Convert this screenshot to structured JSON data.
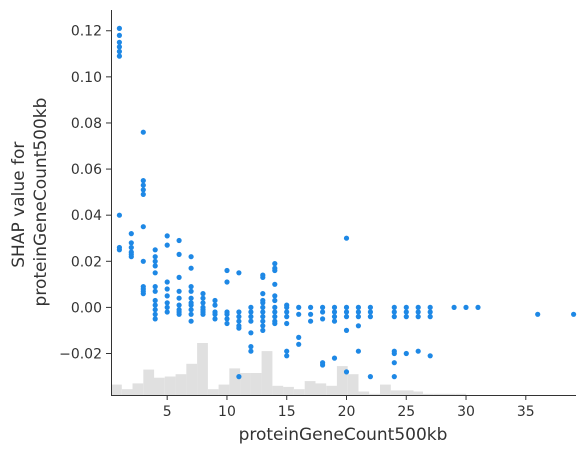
{
  "chart_data": {
    "type": "scatter",
    "xlabel": "proteinGeneCount500kb",
    "ylabel": "SHAP value for\nproteinGeneCount500kb",
    "xlim": [
      0.3,
      39.2
    ],
    "ylim": [
      -0.038,
      0.129
    ],
    "xticks": [
      5,
      10,
      15,
      20,
      25,
      30,
      35
    ],
    "yticks": [
      0.12,
      0.1,
      0.08,
      0.06,
      0.04,
      0.02,
      0.0,
      -0.02
    ],
    "ytick_labels": [
      "0.12",
      "0.10",
      "0.08",
      "0.06",
      "0.04",
      "0.02",
      "0.00",
      "−0.02"
    ],
    "colors": {
      "points": "#1e88e5",
      "histogram": "#e0e0e0",
      "axis": "#333333"
    },
    "grid": false,
    "legend": "none",
    "points": [
      [
        1,
        0.121
      ],
      [
        1,
        0.118
      ],
      [
        1,
        0.115
      ],
      [
        1,
        0.113
      ],
      [
        1,
        0.111
      ],
      [
        1,
        0.109
      ],
      [
        1,
        0.04
      ],
      [
        1,
        0.026
      ],
      [
        1,
        0.025
      ],
      [
        2,
        0.032
      ],
      [
        2,
        0.028
      ],
      [
        2,
        0.026
      ],
      [
        2,
        0.024
      ],
      [
        2,
        0.023
      ],
      [
        2,
        0.022
      ],
      [
        3,
        0.076
      ],
      [
        3,
        0.055
      ],
      [
        3,
        0.053
      ],
      [
        3,
        0.051
      ],
      [
        3,
        0.049
      ],
      [
        3,
        0.035
      ],
      [
        3,
        0.02
      ],
      [
        3,
        0.009
      ],
      [
        3,
        0.008
      ],
      [
        3,
        0.007
      ],
      [
        3,
        0.006
      ],
      [
        4,
        0.025
      ],
      [
        4,
        0.022
      ],
      [
        4,
        0.02
      ],
      [
        4,
        0.018
      ],
      [
        4,
        0.015
      ],
      [
        4,
        0.009
      ],
      [
        4,
        0.007
      ],
      [
        4,
        0.003
      ],
      [
        4,
        0.001
      ],
      [
        4,
        -0.001
      ],
      [
        4,
        -0.003
      ],
      [
        4,
        -0.005
      ],
      [
        5,
        0.031
      ],
      [
        5,
        0.027
      ],
      [
        5,
        0.011
      ],
      [
        5,
        0.008
      ],
      [
        5,
        0.005
      ],
      [
        5,
        0.002
      ],
      [
        5,
        0.0
      ],
      [
        5,
        -0.002
      ],
      [
        6,
        0.029
      ],
      [
        6,
        0.023
      ],
      [
        6,
        0.013
      ],
      [
        6,
        0.007
      ],
      [
        6,
        0.004
      ],
      [
        6,
        0.001
      ],
      [
        6,
        -0.001
      ],
      [
        6,
        -0.002
      ],
      [
        6,
        -0.003
      ],
      [
        7,
        0.022
      ],
      [
        7,
        0.017
      ],
      [
        7,
        0.009
      ],
      [
        7,
        0.007
      ],
      [
        7,
        0.004
      ],
      [
        7,
        0.002
      ],
      [
        7,
        0.001
      ],
      [
        7,
        -0.001
      ],
      [
        7,
        -0.003
      ],
      [
        7,
        -0.006
      ],
      [
        8,
        0.006
      ],
      [
        8,
        0.004
      ],
      [
        8,
        0.002
      ],
      [
        8,
        0.0
      ],
      [
        8,
        -0.001
      ],
      [
        8,
        -0.002
      ],
      [
        8,
        -0.003
      ],
      [
        9,
        0.003
      ],
      [
        9,
        0.001
      ],
      [
        9,
        -0.002
      ],
      [
        9,
        -0.003
      ],
      [
        9,
        -0.005
      ],
      [
        10,
        0.016
      ],
      [
        10,
        0.011
      ],
      [
        10,
        -0.002
      ],
      [
        10,
        -0.003
      ],
      [
        10,
        -0.005
      ],
      [
        10,
        -0.007
      ],
      [
        11,
        0.015
      ],
      [
        11,
        -0.002
      ],
      [
        11,
        -0.004
      ],
      [
        11,
        -0.006
      ],
      [
        11,
        -0.008
      ],
      [
        11,
        -0.009
      ],
      [
        11,
        -0.03
      ],
      [
        12,
        0.0
      ],
      [
        12,
        -0.002
      ],
      [
        12,
        -0.004
      ],
      [
        12,
        -0.006
      ],
      [
        12,
        -0.011
      ],
      [
        12,
        -0.017
      ],
      [
        12,
        -0.019
      ],
      [
        13,
        0.014
      ],
      [
        13,
        0.013
      ],
      [
        13,
        0.006
      ],
      [
        13,
        0.003
      ],
      [
        13,
        0.002
      ],
      [
        13,
        0.0
      ],
      [
        13,
        -0.002
      ],
      [
        13,
        -0.004
      ],
      [
        13,
        -0.006
      ],
      [
        13,
        -0.008
      ],
      [
        13,
        -0.01
      ],
      [
        14,
        0.019
      ],
      [
        14,
        0.017
      ],
      [
        14,
        0.016
      ],
      [
        14,
        0.01
      ],
      [
        14,
        0.005
      ],
      [
        14,
        0.003
      ],
      [
        14,
        0.0
      ],
      [
        14,
        -0.002
      ],
      [
        14,
        -0.004
      ],
      [
        14,
        -0.006
      ],
      [
        14,
        -0.007
      ],
      [
        15,
        0.001
      ],
      [
        15,
        0.0
      ],
      [
        15,
        -0.002
      ],
      [
        15,
        -0.004
      ],
      [
        15,
        -0.007
      ],
      [
        15,
        -0.019
      ],
      [
        15,
        -0.021
      ],
      [
        16,
        0.0
      ],
      [
        16,
        -0.003
      ],
      [
        16,
        -0.013
      ],
      [
        16,
        -0.016
      ],
      [
        17,
        0.0
      ],
      [
        17,
        -0.003
      ],
      [
        17,
        -0.006
      ],
      [
        18,
        0.0
      ],
      [
        18,
        -0.002
      ],
      [
        18,
        -0.005
      ],
      [
        18,
        -0.024
      ],
      [
        18,
        -0.025
      ],
      [
        19,
        0.0
      ],
      [
        19,
        -0.002
      ],
      [
        19,
        -0.004
      ],
      [
        19,
        -0.006
      ],
      [
        19,
        -0.022
      ],
      [
        20,
        0.03
      ],
      [
        20,
        0.0
      ],
      [
        20,
        -0.002
      ],
      [
        20,
        -0.004
      ],
      [
        20,
        -0.01
      ],
      [
        20,
        -0.028
      ],
      [
        21,
        0.0
      ],
      [
        21,
        -0.002
      ],
      [
        21,
        -0.004
      ],
      [
        21,
        -0.008
      ],
      [
        21,
        -0.019
      ],
      [
        22,
        0.0
      ],
      [
        22,
        -0.002
      ],
      [
        22,
        -0.004
      ],
      [
        22,
        -0.03
      ],
      [
        24,
        0.0
      ],
      [
        24,
        -0.002
      ],
      [
        24,
        -0.004
      ],
      [
        24,
        -0.019
      ],
      [
        24,
        -0.02
      ],
      [
        24,
        -0.024
      ],
      [
        24,
        -0.03
      ],
      [
        25,
        0.0
      ],
      [
        25,
        -0.002
      ],
      [
        25,
        -0.004
      ],
      [
        25,
        -0.02
      ],
      [
        26,
        0.0
      ],
      [
        26,
        -0.002
      ],
      [
        26,
        -0.004
      ],
      [
        26,
        -0.019
      ],
      [
        27,
        0.0
      ],
      [
        27,
        -0.002
      ],
      [
        27,
        -0.004
      ],
      [
        27,
        -0.021
      ],
      [
        29,
        0.0
      ],
      [
        30,
        0.0
      ],
      [
        31,
        0.0
      ],
      [
        36,
        -0.003
      ],
      [
        39,
        -0.003
      ]
    ],
    "histogram": {
      "bin_edges": [
        0.3,
        1.2,
        2.1,
        3.0,
        3.9,
        4.8,
        5.7,
        6.6,
        7.5,
        8.4,
        9.3,
        10.2,
        11.1,
        12.0,
        12.9,
        13.8,
        14.7,
        15.6,
        16.5,
        17.4,
        18.3,
        19.2,
        20.1,
        21.0,
        21.9,
        22.8,
        23.7,
        24.6,
        25.6,
        26.4,
        27.3,
        28.2,
        29.1,
        30.0
      ],
      "counts": [
        9,
        5,
        10,
        22,
        15,
        16,
        18,
        27,
        45,
        5,
        9,
        23,
        19,
        19,
        38,
        8,
        7,
        5,
        12,
        10,
        8,
        25,
        18,
        3,
        1,
        9,
        4,
        4,
        3,
        1,
        1,
        1,
        1
      ]
    }
  }
}
